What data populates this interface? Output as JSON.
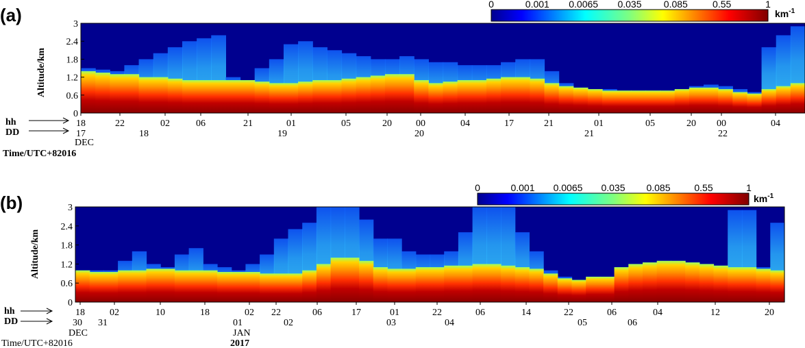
{
  "chart_data": [
    {
      "panel_label": "(a)",
      "type": "heatmap",
      "ylabel": "Altitude/km",
      "ylim": [
        0,
        3
      ],
      "y_ticks": [
        "0",
        "0.6",
        "1.2",
        "1.8",
        "2.4",
        "3"
      ],
      "colorbar": {
        "ticks": [
          "0",
          "0.001",
          "0.0065",
          "0.035",
          "0.085",
          "0.55",
          "1"
        ],
        "unit": "km",
        "unit_exp": "-1"
      },
      "row_labels": {
        "hh": "hh",
        "dd": "DD",
        "time": "Time/UTC+8"
      },
      "hour_ticks": [
        "18",
        "22",
        "02",
        "06",
        "21",
        "01",
        "05",
        "20",
        "00",
        "04",
        "17",
        "21",
        "01",
        "05",
        "20",
        "00",
        "04"
      ],
      "day_ticks": [
        "17",
        "18",
        "19",
        "20",
        "21",
        "22"
      ],
      "month_label": "DEC",
      "year_label": "2016",
      "layer_top_km": [
        1.4,
        1.35,
        1.3,
        1.3,
        1.2,
        1.2,
        1.15,
        1.1,
        1.1,
        1.1,
        1.1,
        1.1,
        1.05,
        1.0,
        1.0,
        1.05,
        1.1,
        1.1,
        1.15,
        1.2,
        1.25,
        1.3,
        1.3,
        1.1,
        1.0,
        1.05,
        1.1,
        1.1,
        1.15,
        1.2,
        1.2,
        1.15,
        1.0,
        0.9,
        0.85,
        0.8,
        0.75,
        0.75,
        0.75,
        0.75,
        0.75,
        0.8,
        0.85,
        0.85,
        0.8,
        0.7,
        0.65,
        0.8,
        0.9,
        1.0
      ],
      "aerosol_top_km": [
        1.5,
        1.45,
        1.4,
        1.6,
        1.8,
        2.0,
        2.2,
        2.4,
        2.5,
        2.6,
        1.2,
        1.1,
        1.5,
        1.8,
        2.3,
        2.4,
        2.2,
        2.1,
        2.0,
        1.9,
        1.8,
        1.8,
        1.9,
        1.8,
        1.7,
        1.7,
        1.6,
        1.6,
        1.6,
        1.7,
        1.8,
        1.8,
        1.4,
        1.0,
        0.85,
        0.8,
        0.8,
        0.75,
        0.75,
        0.75,
        0.75,
        0.8,
        0.9,
        0.95,
        0.9,
        0.8,
        0.7,
        2.2,
        2.6,
        2.9
      ]
    },
    {
      "panel_label": "(b)",
      "type": "heatmap",
      "ylabel": "Altitude/km",
      "ylim": [
        0,
        3
      ],
      "y_ticks": [
        "0",
        "0.6",
        "1.2",
        "1.8",
        "2.4",
        "3"
      ],
      "colorbar": {
        "ticks": [
          "0",
          "0.001",
          "0.0065",
          "0.035",
          "0.085",
          "0.55",
          "1"
        ],
        "unit": "km",
        "unit_exp": "-1"
      },
      "row_labels": {
        "hh": "hh",
        "dd": "DD",
        "time": "Time/UTC+8"
      },
      "hour_ticks": [
        "18",
        "02",
        "10",
        "18",
        "02",
        "22",
        "06",
        "17",
        "01",
        "22",
        "06",
        "14",
        "22",
        "06",
        "04",
        "12",
        "20"
      ],
      "day_ticks": [
        "30",
        "31",
        "01",
        "02",
        "03",
        "04",
        "05",
        "06"
      ],
      "month_labels": [
        "DEC",
        "JAN"
      ],
      "year_labels": [
        "2016",
        "2017"
      ],
      "layer_top_km": [
        1.0,
        0.95,
        0.95,
        1.0,
        1.0,
        1.05,
        1.05,
        1.0,
        1.0,
        1.0,
        0.95,
        0.95,
        0.95,
        0.9,
        0.9,
        0.9,
        1.0,
        1.2,
        1.4,
        1.4,
        1.3,
        1.1,
        1.05,
        1.05,
        1.1,
        1.1,
        1.15,
        1.15,
        1.2,
        1.2,
        1.15,
        1.1,
        1.05,
        0.9,
        0.75,
        0.7,
        0.8,
        0.8,
        1.1,
        1.2,
        1.25,
        1.3,
        1.3,
        1.25,
        1.2,
        1.15,
        1.1,
        1.1,
        1.05,
        1.0
      ],
      "aerosol_top_km": [
        1.0,
        1.0,
        1.0,
        1.3,
        1.6,
        1.2,
        1.1,
        1.5,
        1.7,
        1.2,
        1.1,
        1.0,
        1.2,
        1.5,
        2.0,
        2.3,
        2.5,
        3.0,
        3.0,
        3.0,
        2.6,
        2.0,
        2.0,
        1.6,
        1.5,
        1.5,
        1.6,
        2.2,
        3.0,
        3.0,
        3.0,
        2.2,
        1.6,
        1.0,
        0.8,
        0.7,
        0.8,
        0.8,
        1.1,
        1.2,
        1.25,
        1.3,
        1.3,
        1.25,
        1.2,
        1.15,
        2.9,
        2.9,
        1.1,
        2.5
      ]
    }
  ]
}
